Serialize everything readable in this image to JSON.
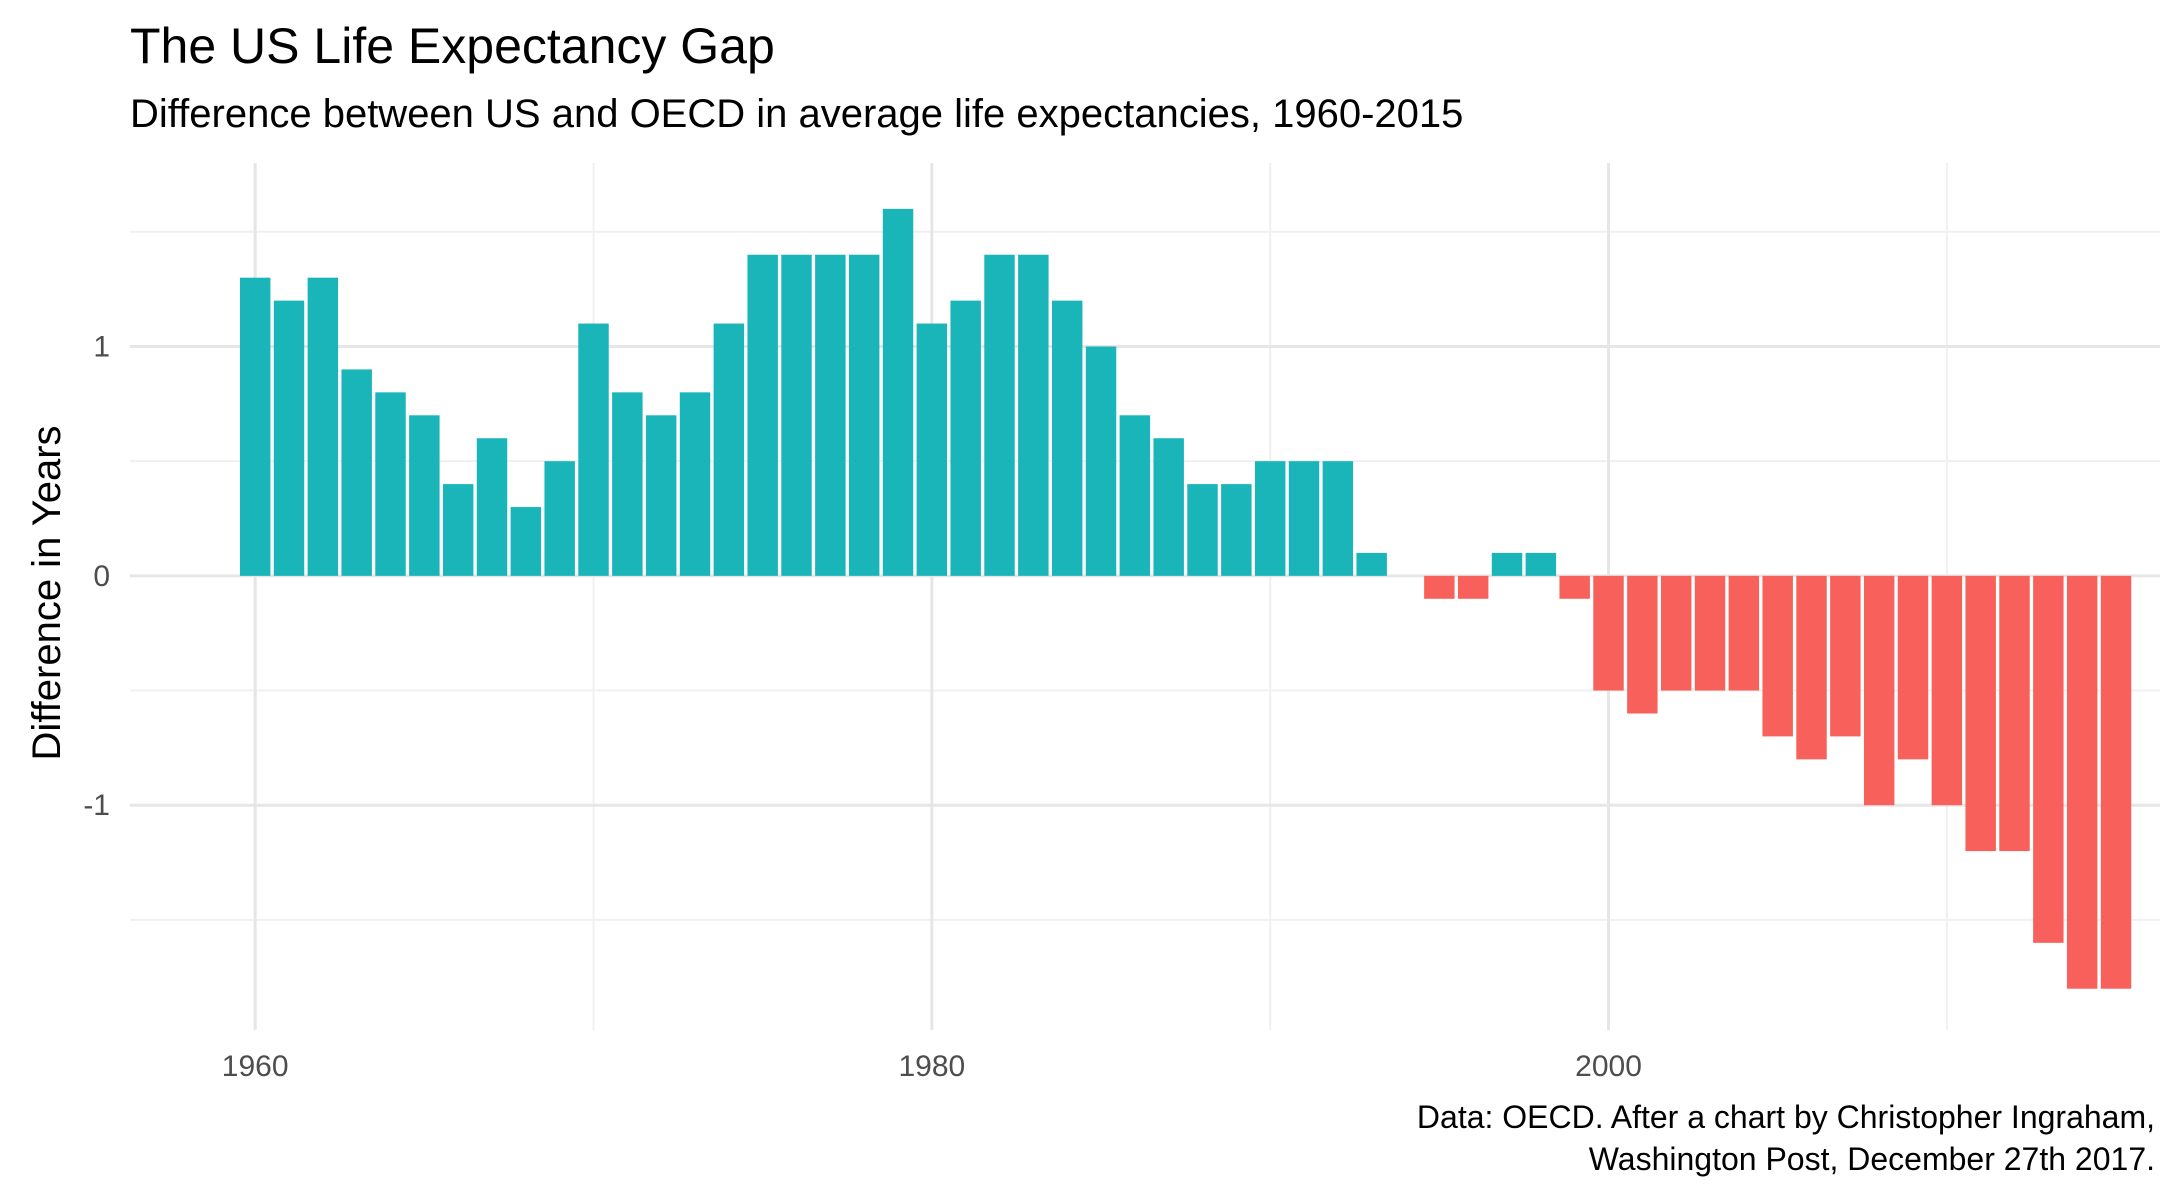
{
  "chart_data": {
    "type": "bar",
    "title": "The US Life Expectancy Gap",
    "subtitle": "Difference between US and OECD in average life expectancies, 1960-2015",
    "xlabel": "",
    "ylabel": "Difference in Years",
    "caption": [
      "Data: OECD. After a chart by Christopher Ingraham,",
      "Washington Post, December 27th 2017."
    ],
    "x_ticks": [
      1960,
      1980,
      2000
    ],
    "y_ticks": [
      -1,
      0,
      1
    ],
    "xlim": [
      1956.3,
      2016.3
    ],
    "ylim": [
      -1.98,
      1.8
    ],
    "grid": "major and minor, both axes",
    "legend": "none",
    "colors": {
      "positive": "#19b5b8",
      "negative": "#f8615b",
      "grid_major": "#e6e6e6",
      "grid_minor": "#f0f0f0"
    },
    "x": [
      1960,
      1961,
      1962,
      1963,
      1964,
      1965,
      1966,
      1967,
      1968,
      1969,
      1970,
      1971,
      1972,
      1973,
      1974,
      1975,
      1976,
      1977,
      1978,
      1979,
      1980,
      1981,
      1982,
      1983,
      1984,
      1985,
      1986,
      1987,
      1988,
      1989,
      1990,
      1991,
      1992,
      1993,
      1994,
      1995,
      1996,
      1997,
      1998,
      1999,
      2000,
      2001,
      2002,
      2003,
      2004,
      2005,
      2006,
      2007,
      2008,
      2009,
      2010,
      2011,
      2012,
      2013,
      2014,
      2015
    ],
    "values": [
      1.3,
      1.2,
      1.3,
      0.9,
      0.8,
      0.7,
      0.4,
      0.6,
      0.3,
      0.5,
      1.1,
      0.8,
      0.7,
      0.8,
      1.1,
      1.4,
      1.4,
      1.4,
      1.4,
      1.6,
      1.1,
      1.2,
      1.4,
      1.4,
      1.2,
      1.0,
      0.7,
      0.6,
      0.4,
      0.4,
      0.5,
      0.5,
      0.5,
      0.1,
      0.0,
      -0.1,
      -0.1,
      0.1,
      0.1,
      -0.1,
      -0.5,
      -0.6,
      -0.5,
      -0.5,
      -0.5,
      -0.7,
      -0.8,
      -0.7,
      -1.0,
      -0.8,
      -1.0,
      -1.2,
      -1.2,
      -1.6,
      -1.8,
      -1.8
    ]
  }
}
